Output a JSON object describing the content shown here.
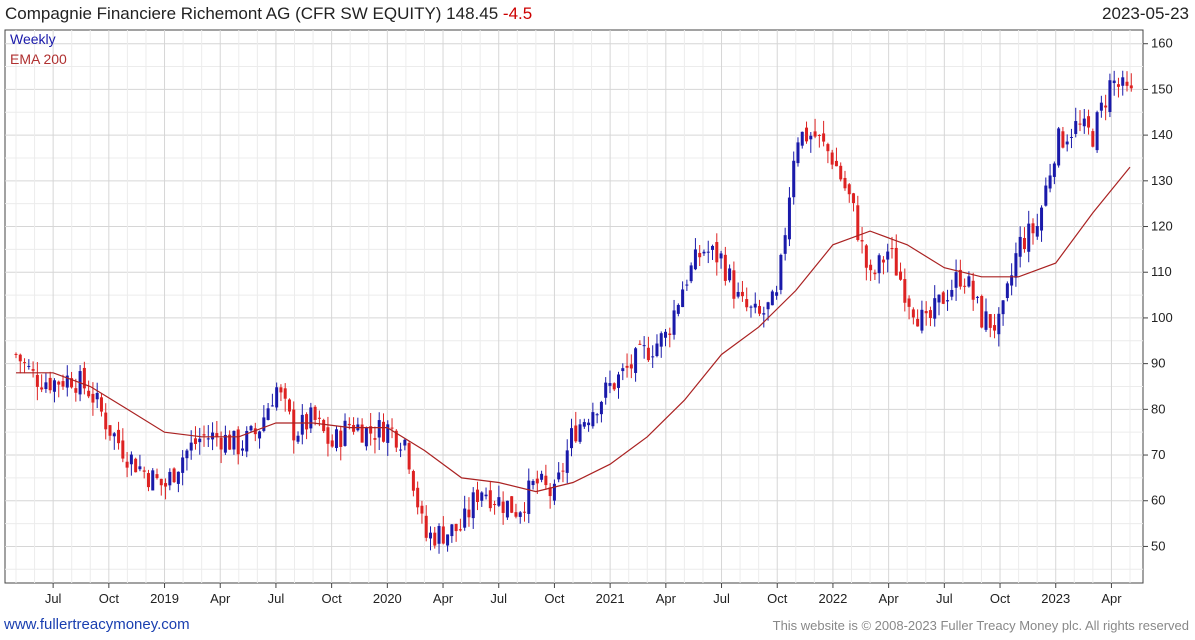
{
  "header": {
    "title": "Compagnie Financiere Richemont AG (CFR SW EQUITY) 148.45",
    "change": "-4.5",
    "date": "2023-05-23"
  },
  "legend": {
    "series1": "Weekly",
    "series2": "EMA 200"
  },
  "footer": {
    "left": "www.fullertreacymoney.com",
    "right": "This website is © 2008-2023 Fuller Treacy Money plc. All rights reserved"
  },
  "colors": {
    "up": "#1a1aaa",
    "down": "#dd2222",
    "ema": "#aa2222",
    "grid": "#dddddd"
  },
  "chart_data": {
    "type": "line",
    "title": "Compagnie Financiere Richemont AG (CFR SW EQUITY) 148.45 -4.5",
    "xlabel": "",
    "ylabel": "",
    "ylim": [
      42,
      163
    ],
    "y_ticks": [
      50,
      60,
      70,
      80,
      90,
      100,
      110,
      120,
      130,
      140,
      150,
      160
    ],
    "x_ticks": [
      "Jul",
      "Oct",
      "2019",
      "Apr",
      "Jul",
      "Oct",
      "2020",
      "Apr",
      "Jul",
      "Oct",
      "2021",
      "Apr",
      "Jul",
      "Oct",
      "2022",
      "Apr",
      "Jul",
      "Oct",
      "2023",
      "Apr"
    ],
    "x_range": [
      "2018-05",
      "2023-05"
    ],
    "grid": true,
    "legend_position": "top-left",
    "series": [
      {
        "name": "Weekly",
        "style": "candlestick",
        "close_points": [
          [
            "2018-05",
            92
          ],
          [
            "2018-06",
            87
          ],
          [
            "2018-07",
            86
          ],
          [
            "2018-08",
            87
          ],
          [
            "2018-09",
            84
          ],
          [
            "2018-10",
            76
          ],
          [
            "2018-11",
            70
          ],
          [
            "2018-12",
            66
          ],
          [
            "2019-01",
            63
          ],
          [
            "2019-02",
            70
          ],
          [
            "2019-03",
            74
          ],
          [
            "2019-04",
            74
          ],
          [
            "2019-05",
            72
          ],
          [
            "2019-06",
            75
          ],
          [
            "2019-07",
            85
          ],
          [
            "2019-08",
            75
          ],
          [
            "2019-09",
            78
          ],
          [
            "2019-10",
            72
          ],
          [
            "2019-11",
            77
          ],
          [
            "2019-12",
            75
          ],
          [
            "2020-01",
            76
          ],
          [
            "2020-02",
            73
          ],
          [
            "2020-03",
            52
          ],
          [
            "2020-04",
            53
          ],
          [
            "2020-05",
            54
          ],
          [
            "2020-06",
            63
          ],
          [
            "2020-07",
            60
          ],
          [
            "2020-08",
            58
          ],
          [
            "2020-09",
            64
          ],
          [
            "2020-10",
            61
          ],
          [
            "2020-11",
            75
          ],
          [
            "2020-12",
            80
          ],
          [
            "2021-01",
            85
          ],
          [
            "2021-02",
            89
          ],
          [
            "2021-03",
            93
          ],
          [
            "2021-04",
            96
          ],
          [
            "2021-05",
            108
          ],
          [
            "2021-06",
            115
          ],
          [
            "2021-07",
            113
          ],
          [
            "2021-08",
            103
          ],
          [
            "2021-09",
            100
          ],
          [
            "2021-10",
            104
          ],
          [
            "2021-11",
            140
          ],
          [
            "2021-12",
            140
          ],
          [
            "2022-01",
            135
          ],
          [
            "2022-02",
            125
          ],
          [
            "2022-03",
            108
          ],
          [
            "2022-04",
            115
          ],
          [
            "2022-05",
            105
          ],
          [
            "2022-06",
            98
          ],
          [
            "2022-07",
            105
          ],
          [
            "2022-08",
            110
          ],
          [
            "2022-09",
            100
          ],
          [
            "2022-10",
            98
          ],
          [
            "2022-11",
            116
          ],
          [
            "2022-12",
            120
          ],
          [
            "2023-01",
            138
          ],
          [
            "2023-02",
            142
          ],
          [
            "2023-03",
            140
          ],
          [
            "2023-04",
            152
          ],
          [
            "2023-05",
            148.45
          ]
        ]
      },
      {
        "name": "EMA 200",
        "style": "line",
        "points": [
          [
            "2018-05",
            88
          ],
          [
            "2018-07",
            88
          ],
          [
            "2018-09",
            85
          ],
          [
            "2018-11",
            80
          ],
          [
            "2019-01",
            75
          ],
          [
            "2019-03",
            74
          ],
          [
            "2019-05",
            74
          ],
          [
            "2019-07",
            77
          ],
          [
            "2019-09",
            77
          ],
          [
            "2019-11",
            76
          ],
          [
            "2020-01",
            76
          ],
          [
            "2020-03",
            71
          ],
          [
            "2020-05",
            65
          ],
          [
            "2020-07",
            64
          ],
          [
            "2020-09",
            62
          ],
          [
            "2020-11",
            64
          ],
          [
            "2021-01",
            68
          ],
          [
            "2021-03",
            74
          ],
          [
            "2021-05",
            82
          ],
          [
            "2021-07",
            92
          ],
          [
            "2021-09",
            98
          ],
          [
            "2021-11",
            106
          ],
          [
            "2022-01",
            116
          ],
          [
            "2022-03",
            119
          ],
          [
            "2022-05",
            116
          ],
          [
            "2022-07",
            111
          ],
          [
            "2022-09",
            109
          ],
          [
            "2022-11",
            109
          ],
          [
            "2023-01",
            112
          ],
          [
            "2023-03",
            123
          ],
          [
            "2023-05",
            133
          ]
        ]
      }
    ]
  }
}
